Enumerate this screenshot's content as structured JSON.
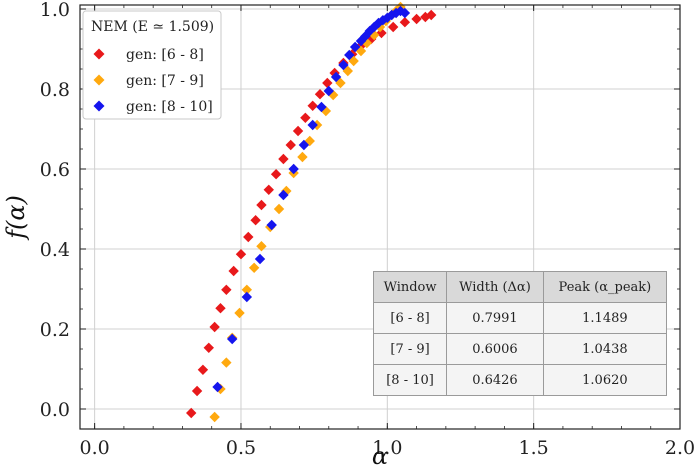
{
  "chart_data": {
    "type": "scatter",
    "xlabel": "α",
    "ylabel": "f(α)",
    "xlim": [
      -0.05,
      2.0
    ],
    "ylim": [
      -0.05,
      1.01
    ],
    "xticks": [
      "0.0",
      "0.5",
      "1.0",
      "1.5",
      "2.0"
    ],
    "xtick_values": [
      0,
      0.5,
      1.0,
      1.5,
      2.0
    ],
    "yticks": [
      "0.0",
      "0.2",
      "0.4",
      "0.6",
      "0.8",
      "1.0"
    ],
    "ytick_values": [
      0,
      0.2,
      0.4,
      0.6,
      0.8,
      1.0
    ],
    "grid": true,
    "legend": {
      "title": "NEM (E ≃ 1.509)",
      "position": "top-left"
    },
    "series": [
      {
        "name": "gen: [6 - 8]",
        "color": "#e8191b",
        "marker": "diamond",
        "points": [
          [
            0.33,
            -0.01
          ],
          [
            0.35,
            0.045
          ],
          [
            0.37,
            0.098
          ],
          [
            0.39,
            0.153
          ],
          [
            0.41,
            0.205
          ],
          [
            0.43,
            0.252
          ],
          [
            0.45,
            0.298
          ],
          [
            0.475,
            0.345
          ],
          [
            0.5,
            0.387
          ],
          [
            0.525,
            0.43
          ],
          [
            0.55,
            0.472
          ],
          [
            0.57,
            0.51
          ],
          [
            0.595,
            0.548
          ],
          [
            0.62,
            0.587
          ],
          [
            0.645,
            0.625
          ],
          [
            0.67,
            0.66
          ],
          [
            0.695,
            0.695
          ],
          [
            0.72,
            0.728
          ],
          [
            0.745,
            0.758
          ],
          [
            0.77,
            0.787
          ],
          [
            0.795,
            0.815
          ],
          [
            0.82,
            0.84
          ],
          [
            0.85,
            0.865
          ],
          [
            0.88,
            0.887
          ],
          [
            0.91,
            0.908
          ],
          [
            0.945,
            0.925
          ],
          [
            0.98,
            0.94
          ],
          [
            1.02,
            0.955
          ],
          [
            1.06,
            0.967
          ],
          [
            1.1,
            0.975
          ],
          [
            1.13,
            0.98
          ],
          [
            1.15,
            0.985
          ]
        ]
      },
      {
        "name": "gen: [7 - 9]",
        "color": "#ffa90f",
        "marker": "diamond",
        "points": [
          [
            0.41,
            -0.02
          ],
          [
            0.43,
            0.05
          ],
          [
            0.45,
            0.116
          ],
          [
            0.47,
            0.178
          ],
          [
            0.495,
            0.24
          ],
          [
            0.52,
            0.298
          ],
          [
            0.545,
            0.353
          ],
          [
            0.57,
            0.407
          ],
          [
            0.6,
            0.455
          ],
          [
            0.63,
            0.5
          ],
          [
            0.655,
            0.545
          ],
          [
            0.68,
            0.59
          ],
          [
            0.71,
            0.63
          ],
          [
            0.735,
            0.67
          ],
          [
            0.76,
            0.71
          ],
          [
            0.79,
            0.745
          ],
          [
            0.815,
            0.785
          ],
          [
            0.84,
            0.815
          ],
          [
            0.865,
            0.845
          ],
          [
            0.885,
            0.87
          ],
          [
            0.91,
            0.895
          ],
          [
            0.93,
            0.915
          ],
          [
            0.955,
            0.935
          ],
          [
            0.975,
            0.955
          ],
          [
            0.995,
            0.97
          ],
          [
            1.015,
            0.985
          ],
          [
            1.03,
            0.995
          ],
          [
            1.04,
            1.0
          ],
          [
            1.045,
            1.005
          ]
        ]
      },
      {
        "name": "gen: [8 - 10]",
        "color": "#1515ee",
        "marker": "diamond",
        "points": [
          [
            0.42,
            0.055
          ],
          [
            0.47,
            0.175
          ],
          [
            0.52,
            0.28
          ],
          [
            0.565,
            0.375
          ],
          [
            0.605,
            0.46
          ],
          [
            0.645,
            0.535
          ],
          [
            0.68,
            0.6
          ],
          [
            0.715,
            0.66
          ],
          [
            0.745,
            0.71
          ],
          [
            0.775,
            0.755
          ],
          [
            0.8,
            0.795
          ],
          [
            0.825,
            0.83
          ],
          [
            0.85,
            0.86
          ],
          [
            0.87,
            0.885
          ],
          [
            0.89,
            0.905
          ],
          [
            0.91,
            0.92
          ],
          [
            0.925,
            0.932
          ],
          [
            0.94,
            0.945
          ],
          [
            0.955,
            0.955
          ],
          [
            0.97,
            0.965
          ],
          [
            0.985,
            0.972
          ],
          [
            1.0,
            0.978
          ],
          [
            1.015,
            0.985
          ],
          [
            1.03,
            0.99
          ],
          [
            1.045,
            0.995
          ],
          [
            1.06,
            0.99
          ]
        ]
      }
    ]
  },
  "table": {
    "headers": [
      "Window",
      "Width (Δα)",
      "Peak (α_peak)"
    ],
    "rows": [
      [
        "[6 - 8]",
        "0.7991",
        "1.1489"
      ],
      [
        "[7 - 9]",
        "0.6006",
        "1.0438"
      ],
      [
        "[8 - 10]",
        "0.6426",
        "1.0620"
      ]
    ]
  }
}
